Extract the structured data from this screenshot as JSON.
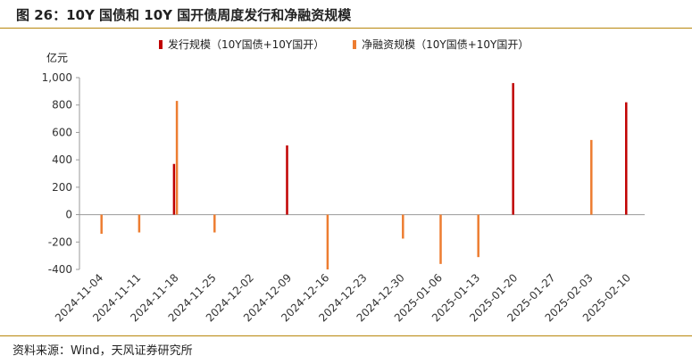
{
  "title": "图 26：10Y 国债和 10Y 国开债周度发行和净融资规模",
  "unit_label": "亿元",
  "source": "资料来源：Wind，天风证券研究所",
  "chart_data": {
    "type": "bar",
    "ylim": [
      -400,
      1000
    ],
    "yticks": [
      "-400",
      "-200",
      "0",
      "200",
      "400",
      "600",
      "800",
      "1,000"
    ],
    "ytick_values": [
      -400,
      -200,
      0,
      200,
      400,
      600,
      800,
      1000
    ],
    "grid": false,
    "legend_position": "top",
    "categories": [
      "2024-11-04",
      "2024-11-11",
      "2024-11-18",
      "2024-11-25",
      "2024-12-02",
      "2024-12-09",
      "2024-12-16",
      "2024-12-23",
      "2024-12-30",
      "2025-01-06",
      "2025-01-13",
      "2025-01-20",
      "2025-01-27",
      "2025-02-03",
      "2025-02-10"
    ],
    "series": [
      {
        "name": "发行规模（10Y国债+10Y国开）",
        "color": "#c00000",
        "values": [
          0,
          0,
          370,
          0,
          0,
          505,
          0,
          0,
          0,
          0,
          0,
          960,
          0,
          0,
          820
        ]
      },
      {
        "name": "净融资规模（10Y国债+10Y国开）",
        "color": "#ed7d31",
        "values": [
          -140,
          -130,
          830,
          -130,
          0,
          0,
          -400,
          0,
          -175,
          -360,
          -310,
          0,
          0,
          545,
          0
        ]
      }
    ]
  }
}
